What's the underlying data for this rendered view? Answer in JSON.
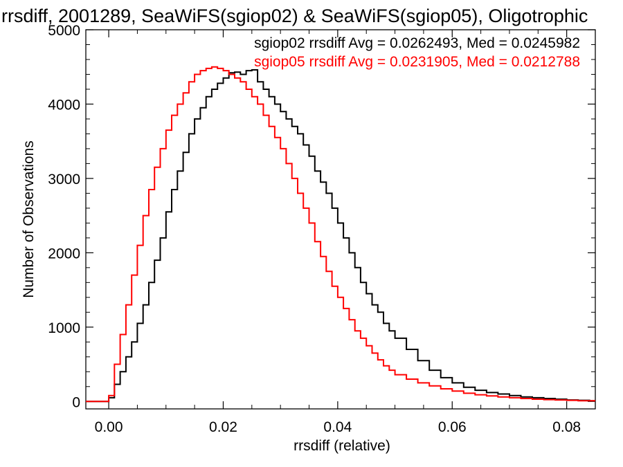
{
  "chart_data": {
    "type": "line",
    "step": true,
    "title": "rrsdiff, 2001289, SeaWiFS(sgiop02) & SeaWiFS(sgiop05), Oligotrophic",
    "xlabel": "rrsdiff (relative)",
    "ylabel": "Number of Observations",
    "xlim": [
      -0.004,
      0.085
    ],
    "ylim": [
      -100,
      5000
    ],
    "xticks": [
      0.0,
      0.02,
      0.04,
      0.06,
      0.08
    ],
    "xtick_labels": [
      "0.00",
      "0.02",
      "0.04",
      "0.06",
      "0.08"
    ],
    "yticks": [
      0,
      1000,
      2000,
      3000,
      4000,
      5000
    ],
    "ytick_labels": [
      "0",
      "1000",
      "2000",
      "3000",
      "4000",
      "5000"
    ],
    "grid": false,
    "legend_placement": "top-right",
    "annotations": [
      {
        "text": "sgiop02 rrsdiff Avg = 0.0262493, Med = 0.0245982",
        "color": "#000000"
      },
      {
        "text": "sgiop05 rrsdiff Avg = 0.0231905, Med = 0.0212788",
        "color": "#ff0000"
      }
    ],
    "series": [
      {
        "color": "#000000",
        "x": [
          -0.004,
          -0.0005,
          0.0,
          0.001,
          0.002,
          0.003,
          0.004,
          0.005,
          0.006,
          0.007,
          0.008,
          0.009,
          0.01,
          0.011,
          0.012,
          0.013,
          0.014,
          0.015,
          0.016,
          0.017,
          0.018,
          0.019,
          0.02,
          0.021,
          0.022,
          0.023,
          0.024,
          0.025,
          0.026,
          0.027,
          0.028,
          0.029,
          0.03,
          0.031,
          0.032,
          0.033,
          0.034,
          0.035,
          0.036,
          0.037,
          0.038,
          0.039,
          0.04,
          0.041,
          0.042,
          0.043,
          0.044,
          0.045,
          0.046,
          0.047,
          0.048,
          0.049,
          0.05,
          0.052,
          0.054,
          0.056,
          0.058,
          0.06,
          0.062,
          0.064,
          0.066,
          0.068,
          0.07,
          0.072,
          0.074,
          0.076,
          0.078,
          0.08,
          0.082,
          0.084,
          0.085
        ],
        "values": [
          0,
          0,
          50,
          230,
          400,
          600,
          800,
          1050,
          1300,
          1600,
          1900,
          2200,
          2550,
          2850,
          3100,
          3350,
          3600,
          3800,
          3950,
          4100,
          4200,
          4280,
          4350,
          4420,
          4430,
          4400,
          4450,
          4460,
          4300,
          4200,
          4100,
          4000,
          3900,
          3800,
          3700,
          3600,
          3450,
          3300,
          3100,
          2950,
          2800,
          2600,
          2400,
          2200,
          2000,
          1800,
          1600,
          1450,
          1300,
          1200,
          1050,
          950,
          850,
          700,
          550,
          420,
          320,
          250,
          190,
          150,
          120,
          100,
          80,
          60,
          50,
          40,
          30,
          20,
          15,
          10,
          10
        ]
      },
      {
        "color": "#ff0000",
        "x": [
          -0.004,
          -0.0005,
          0.0,
          0.001,
          0.002,
          0.003,
          0.004,
          0.005,
          0.006,
          0.007,
          0.008,
          0.009,
          0.01,
          0.011,
          0.012,
          0.013,
          0.014,
          0.015,
          0.016,
          0.017,
          0.018,
          0.019,
          0.02,
          0.021,
          0.022,
          0.023,
          0.024,
          0.025,
          0.026,
          0.027,
          0.028,
          0.029,
          0.03,
          0.031,
          0.032,
          0.033,
          0.034,
          0.035,
          0.036,
          0.037,
          0.038,
          0.039,
          0.04,
          0.041,
          0.042,
          0.043,
          0.044,
          0.045,
          0.046,
          0.047,
          0.048,
          0.049,
          0.05,
          0.052,
          0.054,
          0.056,
          0.058,
          0.06,
          0.062,
          0.064,
          0.066,
          0.068,
          0.07,
          0.072,
          0.074,
          0.076,
          0.078,
          0.08,
          0.082,
          0.084,
          0.085
        ],
        "values": [
          0,
          0,
          80,
          500,
          900,
          1300,
          1700,
          2100,
          2500,
          2850,
          3150,
          3400,
          3650,
          3850,
          4000,
          4150,
          4300,
          4400,
          4450,
          4480,
          4500,
          4480,
          4450,
          4400,
          4350,
          4300,
          4200,
          4100,
          4000,
          3850,
          3700,
          3550,
          3400,
          3200,
          3000,
          2800,
          2600,
          2400,
          2150,
          1950,
          1750,
          1550,
          1400,
          1250,
          1100,
          950,
          850,
          750,
          650,
          560,
          480,
          420,
          360,
          300,
          250,
          210,
          170,
          140,
          110,
          90,
          75,
          60,
          50,
          40,
          30,
          25,
          20,
          15,
          10,
          10,
          10
        ]
      }
    ]
  }
}
